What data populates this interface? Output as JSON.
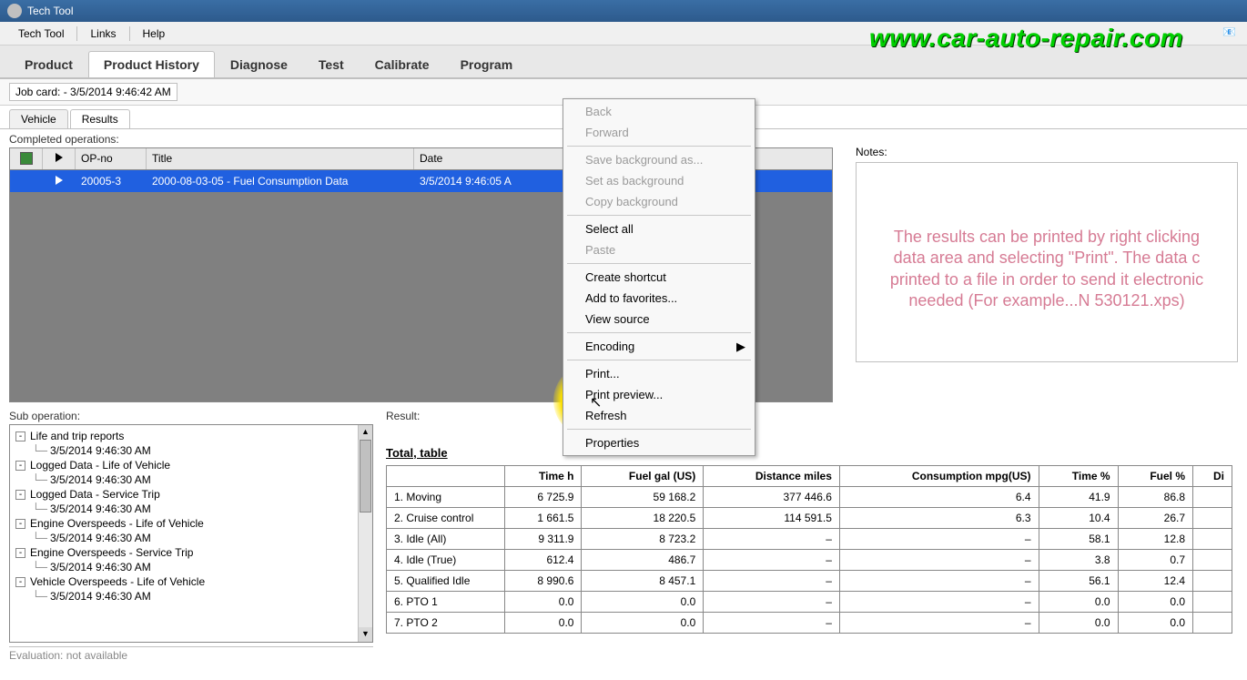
{
  "window": {
    "title": "Tech Tool"
  },
  "menu": {
    "items": [
      "Tech Tool",
      "Links",
      "Help"
    ]
  },
  "main_tabs": {
    "items": [
      "Product",
      "Product History",
      "Diagnose",
      "Test",
      "Calibrate",
      "Program"
    ],
    "active": 1
  },
  "job_card": {
    "label": "Job card: - 3/5/2014 9:46:42 AM"
  },
  "sub_tabs": {
    "items": [
      "Vehicle",
      "Results"
    ],
    "active": 1
  },
  "completed_ops": {
    "label": "Completed operations:",
    "headers": {
      "opno": "OP-no",
      "title": "Title",
      "date": "Date"
    },
    "row": {
      "opno": "20005-3",
      "title": "2000-08-03-05 - Fuel Consumption Data",
      "date": "3/5/2014 9:46:05 A"
    }
  },
  "notes": {
    "label": "Notes:",
    "text": "The results can be printed by right clicking\ndata area and selecting \"Print\".  The data c\nprinted to a file in order to send it electronic\nneeded (For example...N 530121.xps)"
  },
  "context_menu": {
    "items": [
      {
        "label": "Back",
        "disabled": true
      },
      {
        "label": "Forward",
        "disabled": true
      },
      {
        "sep": true
      },
      {
        "label": "Save background as...",
        "disabled": true
      },
      {
        "label": "Set as background",
        "disabled": true
      },
      {
        "label": "Copy background",
        "disabled": true
      },
      {
        "sep": true
      },
      {
        "label": "Select all"
      },
      {
        "label": "Paste",
        "disabled": true
      },
      {
        "sep": true
      },
      {
        "label": "Create shortcut"
      },
      {
        "label": "Add to favorites..."
      },
      {
        "label": "View source"
      },
      {
        "sep": true
      },
      {
        "label": "Encoding",
        "submenu": true
      },
      {
        "sep": true
      },
      {
        "label": "Print..."
      },
      {
        "label": "Print preview..."
      },
      {
        "label": "Refresh"
      },
      {
        "sep": true
      },
      {
        "label": "Properties"
      }
    ]
  },
  "sub_operation": {
    "label": "Sub operation:",
    "tree": [
      {
        "label": "Life and trip reports",
        "toggler": "-"
      },
      {
        "label": "3/5/2014 9:46:30 AM",
        "child": true
      },
      {
        "label": "Logged Data - Life of Vehicle",
        "toggler": "-"
      },
      {
        "label": "3/5/2014 9:46:30 AM",
        "child": true
      },
      {
        "label": "Logged Data - Service Trip",
        "toggler": "-"
      },
      {
        "label": "3/5/2014 9:46:30 AM",
        "child": true
      },
      {
        "label": "Engine Overspeeds - Life of Vehicle",
        "toggler": "-"
      },
      {
        "label": "3/5/2014 9:46:30 AM",
        "child": true
      },
      {
        "label": "Engine Overspeeds - Service Trip",
        "toggler": "-"
      },
      {
        "label": "3/5/2014 9:46:30 AM",
        "child": true
      },
      {
        "label": "Vehicle Overspeeds - Life of Vehicle",
        "toggler": "-"
      },
      {
        "label": "3/5/2014 9:46:30 AM",
        "child": true
      }
    ],
    "eval": "Evaluation: not available"
  },
  "result": {
    "label": "Result:",
    "title": "Total, table",
    "headers": [
      "",
      "Time h",
      "Fuel gal (US)",
      "Distance miles",
      "Consumption mpg(US)",
      "Time %",
      "Fuel %",
      "Di"
    ],
    "rows": [
      [
        "1. Moving",
        "6 725.9",
        "59 168.2",
        "377 446.6",
        "6.4",
        "41.9",
        "86.8",
        ""
      ],
      [
        "2. Cruise control",
        "1 661.5",
        "18 220.5",
        "114 591.5",
        "6.3",
        "10.4",
        "26.7",
        ""
      ],
      [
        "3. Idle (All)",
        "9 311.9",
        "8 723.2",
        "–",
        "–",
        "58.1",
        "12.8",
        ""
      ],
      [
        "4. Idle (True)",
        "612.4",
        "486.7",
        "–",
        "–",
        "3.8",
        "0.7",
        ""
      ],
      [
        "5. Qualified Idle",
        "8 990.6",
        "8 457.1",
        "–",
        "–",
        "56.1",
        "12.4",
        ""
      ],
      [
        "6. PTO 1",
        "0.0",
        "0.0",
        "–",
        "–",
        "0.0",
        "0.0",
        ""
      ],
      [
        "7. PTO 2",
        "0.0",
        "0.0",
        "–",
        "–",
        "0.0",
        "0.0",
        ""
      ]
    ]
  },
  "watermark": "www.car-auto-repair.com",
  "colors": {
    "title_bg": "#2d5a8c",
    "row_sel": "#2060e0",
    "note_text": "#d67b94",
    "highlight": "#ffe300",
    "watermark": "#00d000"
  }
}
